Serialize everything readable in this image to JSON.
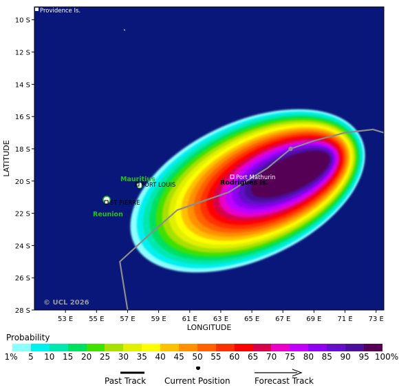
{
  "map": {
    "xlabel": "LONGITUDE",
    "ylabel": "LATITUDE",
    "lon_range": [
      51,
      73.5
    ],
    "lat_range": [
      -28,
      -9.2
    ],
    "lon_ticks": [
      "53 E",
      "55 E",
      "57 E",
      "59 E",
      "61 E",
      "63 E",
      "65 E",
      "67 E",
      "69 E",
      "71 E",
      "73 E"
    ],
    "lon_tick_values": [
      53,
      55,
      57,
      59,
      61,
      63,
      65,
      67,
      69,
      71,
      73
    ],
    "lat_ticks": [
      "10 S",
      "12 S",
      "14 S",
      "16 S",
      "18 S",
      "20 S",
      "22 S",
      "24 S",
      "26 S",
      "28 S"
    ],
    "lat_tick_values": [
      -10,
      -12,
      -14,
      -16,
      -18,
      -20,
      -22,
      -24,
      -26,
      -28
    ],
    "ocean_color": "#09177a",
    "land_color": "#ffffff",
    "track_color": "#8c8c8c",
    "copyright": "© UCL 2026",
    "places": {
      "providence": "Providence Is.",
      "port_louis": "PORT LOUIS",
      "st_pierre": "ST PIERRE",
      "port_mathurin": "Port Mathurin"
    },
    "islands": {
      "mauritius": "Mauritius",
      "reunion": "Reunion",
      "rodrigues": "Rodrigues Is."
    },
    "current_position": {
      "lon": 67.5,
      "lat": -18.0
    },
    "track": [
      [
        57.0,
        -28.0
      ],
      [
        56.5,
        -25.0
      ],
      [
        58.2,
        -23.5
      ],
      [
        60.2,
        -21.8
      ],
      [
        63.5,
        -20.7
      ],
      [
        66.0,
        -19.2
      ],
      [
        67.5,
        -18.0
      ],
      [
        69.0,
        -17.5
      ],
      [
        71.0,
        -17.0
      ],
      [
        72.8,
        -16.8
      ],
      [
        73.5,
        -17.0
      ]
    ]
  },
  "legend": {
    "title": "Probability",
    "colors": [
      "#8cffff",
      "#00efef",
      "#00e8b0",
      "#00e060",
      "#40e000",
      "#a8e000",
      "#e0f000",
      "#ffff00",
      "#ffc000",
      "#ff9000",
      "#ff6000",
      "#ff3000",
      "#ff0000",
      "#d8004a",
      "#e800c8",
      "#c000ff",
      "#9000f0",
      "#6410c8",
      "#4a109a",
      "#550055"
    ],
    "labels": [
      "1%",
      "5",
      "10",
      "15",
      "20",
      "25",
      "30",
      "35",
      "40",
      "45",
      "50",
      "55",
      "60",
      "65",
      "70",
      "75",
      "80",
      "85",
      "90",
      "95",
      "100%"
    ]
  },
  "track_key": {
    "past": "Past Track",
    "current": "Current Position",
    "forecast": "Forecast Track"
  }
}
